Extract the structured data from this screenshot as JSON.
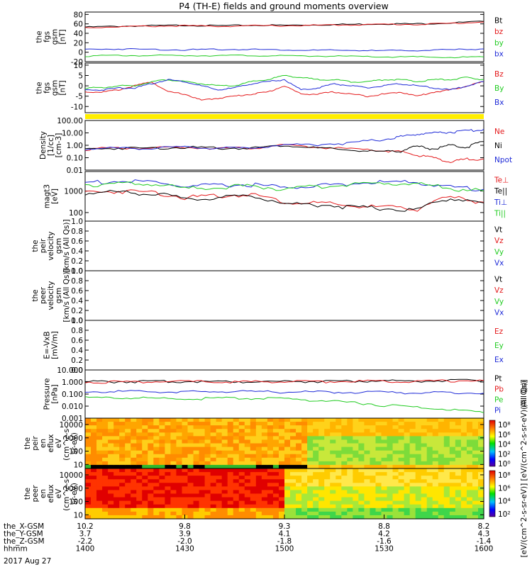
{
  "title": "P4 (TH-E) fields and ground moments overview",
  "date": "2017 Aug 27",
  "colors": {
    "black": "#000000",
    "red": "#e41a1c",
    "green": "#22cc22",
    "blue": "#1f2bd8",
    "yellow": "#ffee00"
  },
  "chart_data": [
    {
      "type": "line",
      "panel": "fgs-gsm",
      "ylabel": [
        "the",
        "fgs",
        "gsm",
        "[nT]"
      ],
      "ylim": [
        -20,
        85
      ],
      "yticks": [
        "80",
        "60",
        "40",
        "20",
        "0",
        "-20"
      ],
      "ytick_values": [
        80,
        60,
        40,
        20,
        0,
        -20
      ],
      "x": [
        1400,
        1410,
        1420,
        1430,
        1440,
        1450,
        1500,
        1510,
        1520,
        1530,
        1540,
        1550,
        1600
      ],
      "series": [
        {
          "name": "Bt",
          "color": "black",
          "values": [
            53,
            55,
            56,
            57,
            56,
            57,
            57,
            58,
            59,
            60,
            60,
            62,
            65
          ]
        },
        {
          "name": "bz",
          "color": "red",
          "values": [
            52,
            54,
            55,
            56,
            55,
            56,
            56,
            57,
            58,
            59,
            59,
            61,
            64
          ]
        },
        {
          "name": "by",
          "color": "green",
          "values": [
            -8,
            -7,
            -7,
            -7,
            -7,
            -7,
            -8,
            -8,
            -9,
            -10,
            -10,
            -11,
            -10
          ]
        },
        {
          "name": "bx",
          "color": "blue",
          "values": [
            6,
            7,
            6,
            5,
            6,
            6,
            5,
            4,
            4,
            3,
            4,
            5,
            7
          ]
        }
      ]
    },
    {
      "type": "line",
      "panel": "fgs-gsm-zoom",
      "ylabel": [
        "the",
        "fgs",
        "gsm",
        "[nT]"
      ],
      "ylim": [
        -13,
        11
      ],
      "yticks": [
        "10",
        "5",
        "0",
        "-5",
        "-10"
      ],
      "ytick_values": [
        10,
        5,
        0,
        -5,
        -10
      ],
      "x": [
        1400,
        1405,
        1410,
        1415,
        1420,
        1425,
        1430,
        1435,
        1440,
        1445,
        1450,
        1455,
        1500,
        1505,
        1510,
        1515,
        1520,
        1525,
        1530,
        1535,
        1540,
        1545,
        1550,
        1555,
        1600
      ],
      "series": [
        {
          "name": "Bz",
          "color": "red",
          "values": [
            -3,
            -3,
            -2,
            0,
            2,
            -3,
            -4,
            -7,
            -6,
            -5,
            -4,
            -3,
            0,
            -4,
            -4,
            -3,
            -4,
            -5,
            -4,
            -3,
            -5,
            -3,
            -2,
            0,
            2
          ]
        },
        {
          "name": "By",
          "color": "green",
          "values": [
            -1,
            -1,
            0,
            0,
            2,
            3,
            2,
            1,
            0,
            0,
            2,
            3,
            5,
            4,
            3,
            3,
            2,
            2,
            3,
            3,
            2,
            3,
            3,
            4,
            3
          ]
        },
        {
          "name": "Bx",
          "color": "blue",
          "values": [
            -2,
            -2,
            -1,
            -1,
            1,
            3,
            2,
            0,
            -2,
            -1,
            1,
            2,
            3,
            -2,
            -1,
            1,
            0,
            -1,
            0,
            1,
            0,
            -1,
            -2,
            0,
            2
          ]
        }
      ]
    },
    {
      "type": "line",
      "panel": "density",
      "ylog": true,
      "ylabel": [
        "Density",
        "[1/cc]",
        "[cm-3]"
      ],
      "ylim": [
        0.01,
        100
      ],
      "yticks": [
        "100.00",
        "10.00",
        "1.00",
        "0.10",
        "0.01"
      ],
      "ytick_values": [
        100,
        10,
        1,
        0.1,
        0.01
      ],
      "x": [
        1400,
        1410,
        1420,
        1430,
        1440,
        1450,
        1500,
        1510,
        1520,
        1530,
        1535,
        1540,
        1545,
        1550,
        1555,
        1600
      ],
      "series": [
        {
          "name": "Ne",
          "color": "red",
          "values": [
            0.5,
            0.6,
            0.6,
            0.7,
            0.6,
            0.6,
            1.0,
            0.7,
            0.5,
            0.35,
            0.3,
            0.15,
            0.1,
            0.04,
            0.08,
            0.08
          ]
        },
        {
          "name": "Ni",
          "color": "black",
          "values": [
            0.5,
            0.6,
            0.6,
            0.7,
            0.6,
            0.6,
            1.0,
            0.6,
            0.4,
            0.3,
            0.35,
            0.8,
            0.5,
            1.0,
            0.7,
            2.0
          ]
        },
        {
          "name": "Npot",
          "color": "blue",
          "values": [
            0.5,
            0.6,
            0.6,
            0.7,
            0.6,
            0.6,
            1.1,
            1.2,
            1.5,
            3,
            5,
            8,
            10,
            12,
            14,
            20
          ]
        }
      ]
    },
    {
      "type": "line",
      "panel": "temperature",
      "ylog": true,
      "ylabel": [
        "magt3",
        "[eV]"
      ],
      "ylim": [
        40,
        8000
      ],
      "yticks": [
        "1000",
        "100"
      ],
      "ytick_values": [
        1000,
        100
      ],
      "x": [
        1400,
        1410,
        1420,
        1430,
        1440,
        1450,
        1500,
        1510,
        1520,
        1530,
        1540,
        1550,
        1600
      ],
      "series": [
        {
          "name": "Te⊥",
          "color": "red",
          "values": [
            900,
            1000,
            900,
            500,
            600,
            700,
            300,
            280,
            200,
            180,
            150,
            500,
            300
          ]
        },
        {
          "name": "Te||",
          "color": "black",
          "values": [
            800,
            900,
            800,
            400,
            500,
            600,
            250,
            240,
            180,
            160,
            130,
            450,
            280
          ]
        },
        {
          "name": "Ti⊥",
          "color": "blue",
          "values": [
            2500,
            2800,
            2600,
            1600,
            1800,
            2000,
            1400,
            1800,
            2200,
            2600,
            2500,
            1500,
            1200
          ]
        },
        {
          "name": "Ti||",
          "color": "green",
          "values": [
            2000,
            2200,
            2100,
            1300,
            1500,
            1700,
            1200,
            1600,
            2000,
            2300,
            2200,
            1300,
            1000
          ]
        }
      ]
    },
    {
      "type": "line",
      "panel": "peir-velocity",
      "ylabel": [
        "the",
        "peir",
        "velocity",
        "gsm",
        "[km/s (All Qs)]"
      ],
      "ylim": [
        0,
        1
      ],
      "yticks": [
        "1.0",
        "0.8",
        "0.6",
        "0.4",
        "0.2",
        "0.0"
      ],
      "ytick_values": [
        1.0,
        0.8,
        0.6,
        0.4,
        0.2,
        0.0
      ],
      "series": [
        {
          "name": "Vt",
          "color": "black",
          "values": []
        },
        {
          "name": "Vz",
          "color": "red",
          "values": []
        },
        {
          "name": "Vy",
          "color": "green",
          "values": []
        },
        {
          "name": "Vx",
          "color": "blue",
          "values": []
        }
      ]
    },
    {
      "type": "line",
      "panel": "peer-velocity",
      "ylabel": [
        "the",
        "peer",
        "velocity",
        "gsm",
        "[km/s (All Qs)]"
      ],
      "ylim": [
        0,
        1
      ],
      "yticks": [
        "1.0",
        "0.8",
        "0.6",
        "0.4",
        "0.2",
        "0.0"
      ],
      "ytick_values": [
        1.0,
        0.8,
        0.6,
        0.4,
        0.2,
        0.0
      ],
      "series": [
        {
          "name": "Vt",
          "color": "black",
          "values": []
        },
        {
          "name": "Vz",
          "color": "red",
          "values": []
        },
        {
          "name": "Vy",
          "color": "green",
          "values": []
        },
        {
          "name": "Vx",
          "color": "blue",
          "values": []
        }
      ]
    },
    {
      "type": "line",
      "panel": "efield",
      "ylabel": [
        "E=-VxB",
        "[mV/m]"
      ],
      "ylim": [
        0,
        1
      ],
      "yticks": [
        "1.0",
        "0.8",
        "0.6",
        "0.4",
        "0.2",
        "0.0"
      ],
      "ytick_values": [
        1.0,
        0.8,
        0.6,
        0.4,
        0.2,
        0.0
      ],
      "series": [
        {
          "name": "Ez",
          "color": "red",
          "values": []
        },
        {
          "name": "Ey",
          "color": "green",
          "values": []
        },
        {
          "name": "Ex",
          "color": "blue",
          "values": []
        }
      ]
    },
    {
      "type": "line",
      "panel": "pressure",
      "ylog": true,
      "ylabel": [
        "Pressure",
        "[nPa]"
      ],
      "ylim": [
        0.001,
        10
      ],
      "yticks": [
        "10.000",
        "1.000",
        "0.100",
        "0.010",
        "0.001"
      ],
      "ytick_values": [
        10,
        1,
        0.1,
        0.01,
        0.001
      ],
      "legend_note": "(All Qs)",
      "x": [
        1400,
        1410,
        1420,
        1430,
        1440,
        1450,
        1500,
        1510,
        1520,
        1530,
        1540,
        1550,
        1600
      ],
      "series": [
        {
          "name": "Pt",
          "color": "black",
          "values": [
            1.05,
            1.1,
            1.1,
            1.15,
            1.1,
            1.1,
            1.15,
            1.15,
            1.2,
            1.25,
            1.25,
            1.3,
            1.4
          ]
        },
        {
          "name": "Pb",
          "color": "red",
          "values": [
            1.0,
            1.05,
            1.05,
            1.1,
            1.05,
            1.05,
            1.1,
            1.1,
            1.15,
            1.2,
            1.2,
            1.25,
            1.35
          ]
        },
        {
          "name": "Pe",
          "color": "green",
          "values": [
            0.05,
            0.05,
            0.045,
            0.04,
            0.045,
            0.045,
            0.04,
            0.03,
            0.02,
            0.012,
            0.008,
            0.005,
            0.0028
          ]
        },
        {
          "name": "Pi",
          "color": "blue",
          "values": [
            0.15,
            0.17,
            0.16,
            0.15,
            0.16,
            0.16,
            0.15,
            0.15,
            0.14,
            0.14,
            0.13,
            0.13,
            0.12
          ]
        }
      ]
    },
    {
      "type": "heatmap",
      "panel": "peir-spectrogram",
      "ylabel": [
        "the",
        "peir",
        "en",
        "eflux",
        "eV",
        "(cm^2-s-",
        "sr-eV)"
      ],
      "ylog": true,
      "ylim": [
        5,
        30000
      ],
      "yticks": [
        "10000",
        "1000",
        "100",
        "10"
      ],
      "ytick_values": [
        10000,
        1000,
        100,
        10
      ],
      "colorbar_ticks": [
        "10⁸",
        "10⁶",
        "10⁴",
        "10²",
        "10⁰"
      ]
    },
    {
      "type": "heatmap",
      "panel": "peer-spectrogram",
      "ylabel": [
        "the",
        "peer",
        "en",
        "eflux",
        "eV",
        "(cm^2-s-",
        "sr-eV)"
      ],
      "ylog": true,
      "ylim": [
        5,
        30000
      ],
      "yticks": [
        "10000",
        "1000",
        "100",
        "10"
      ],
      "ytick_values": [
        10000,
        1000,
        100,
        10
      ],
      "colorbar_ticks": [
        "10⁸",
        "10⁶",
        "10⁴",
        "10²"
      ]
    }
  ],
  "colorbar_label": "[eV/(cm^2-s-sr-eV)] [eV/(cm^2-s-sr-eV)(All Qs)]",
  "xaxis": {
    "rows": [
      {
        "name": "the_X-GSM",
        "values": [
          "10.2",
          "9.8",
          "9.3",
          "8.8",
          "8.2"
        ]
      },
      {
        "name": "the_Y-GSM",
        "values": [
          "3.7",
          "3.9",
          "4.1",
          "4.2",
          "4.3"
        ]
      },
      {
        "name": "the_Z-GSM",
        "values": [
          "-2.2",
          "-2.0",
          "-1.8",
          "-1.6",
          "-1.4"
        ]
      },
      {
        "name": "hhmm",
        "values": [
          "1400",
          "1430",
          "1500",
          "1530",
          "1600"
        ]
      }
    ]
  }
}
